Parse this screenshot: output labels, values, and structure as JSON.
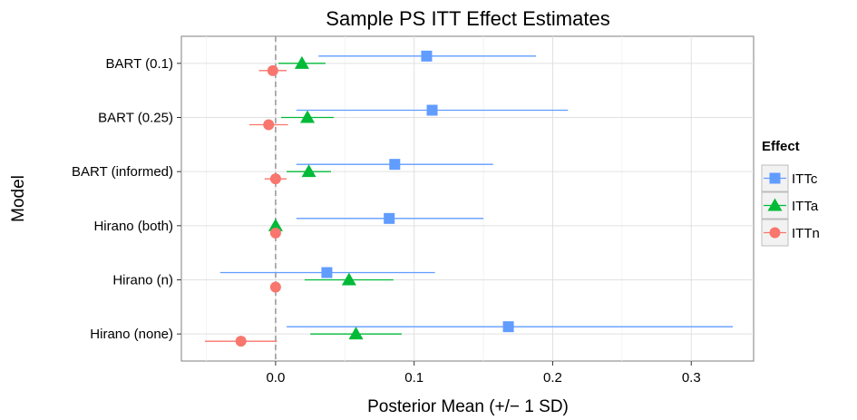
{
  "chart_data": {
    "type": "dot-errorbar",
    "title": "Sample PS ITT Effect Estimates",
    "xlabel": "Posterior Mean (+/− 1 SD)",
    "ylabel": "Model",
    "xlim": [
      -0.068,
      0.345
    ],
    "x_ticks": [
      0.0,
      0.1,
      0.2,
      0.3
    ],
    "x_tick_labels": [
      "0.0",
      "0.1",
      "0.2",
      "0.3"
    ],
    "reference_line": 0.0,
    "grid": true,
    "categories": [
      "BART (0.1)",
      "BART (0.25)",
      "BART (informed)",
      "Hirano (both)",
      "Hirano (n)",
      "Hirano (none)"
    ],
    "legend": {
      "title": "Effect",
      "position": "right"
    },
    "series": [
      {
        "name": "ITTc",
        "color": "#619CFF",
        "marker": "square",
        "mean": [
          0.109,
          0.113,
          0.086,
          0.082,
          0.037,
          0.168
        ],
        "lower": [
          0.031,
          0.015,
          0.015,
          0.015,
          -0.04,
          0.008
        ],
        "upper": [
          0.188,
          0.211,
          0.157,
          0.15,
          0.115,
          0.33
        ]
      },
      {
        "name": "ITTa",
        "color": "#00BA38",
        "marker": "triangle",
        "mean": [
          0.019,
          0.023,
          0.024,
          0.0,
          0.053,
          0.058
        ],
        "lower": [
          0.002,
          0.004,
          0.008,
          0.0,
          0.021,
          0.025
        ],
        "upper": [
          0.036,
          0.042,
          0.04,
          0.0,
          0.085,
          0.091
        ]
      },
      {
        "name": "ITTn",
        "color": "#F8766D",
        "marker": "circle",
        "mean": [
          -0.002,
          -0.005,
          0.0,
          0.0,
          0.0,
          -0.025
        ],
        "lower": [
          -0.012,
          -0.019,
          -0.008,
          0.0,
          0.0,
          -0.051
        ],
        "upper": [
          0.008,
          0.009,
          0.008,
          0.0,
          0.0,
          0.001
        ]
      }
    ]
  }
}
